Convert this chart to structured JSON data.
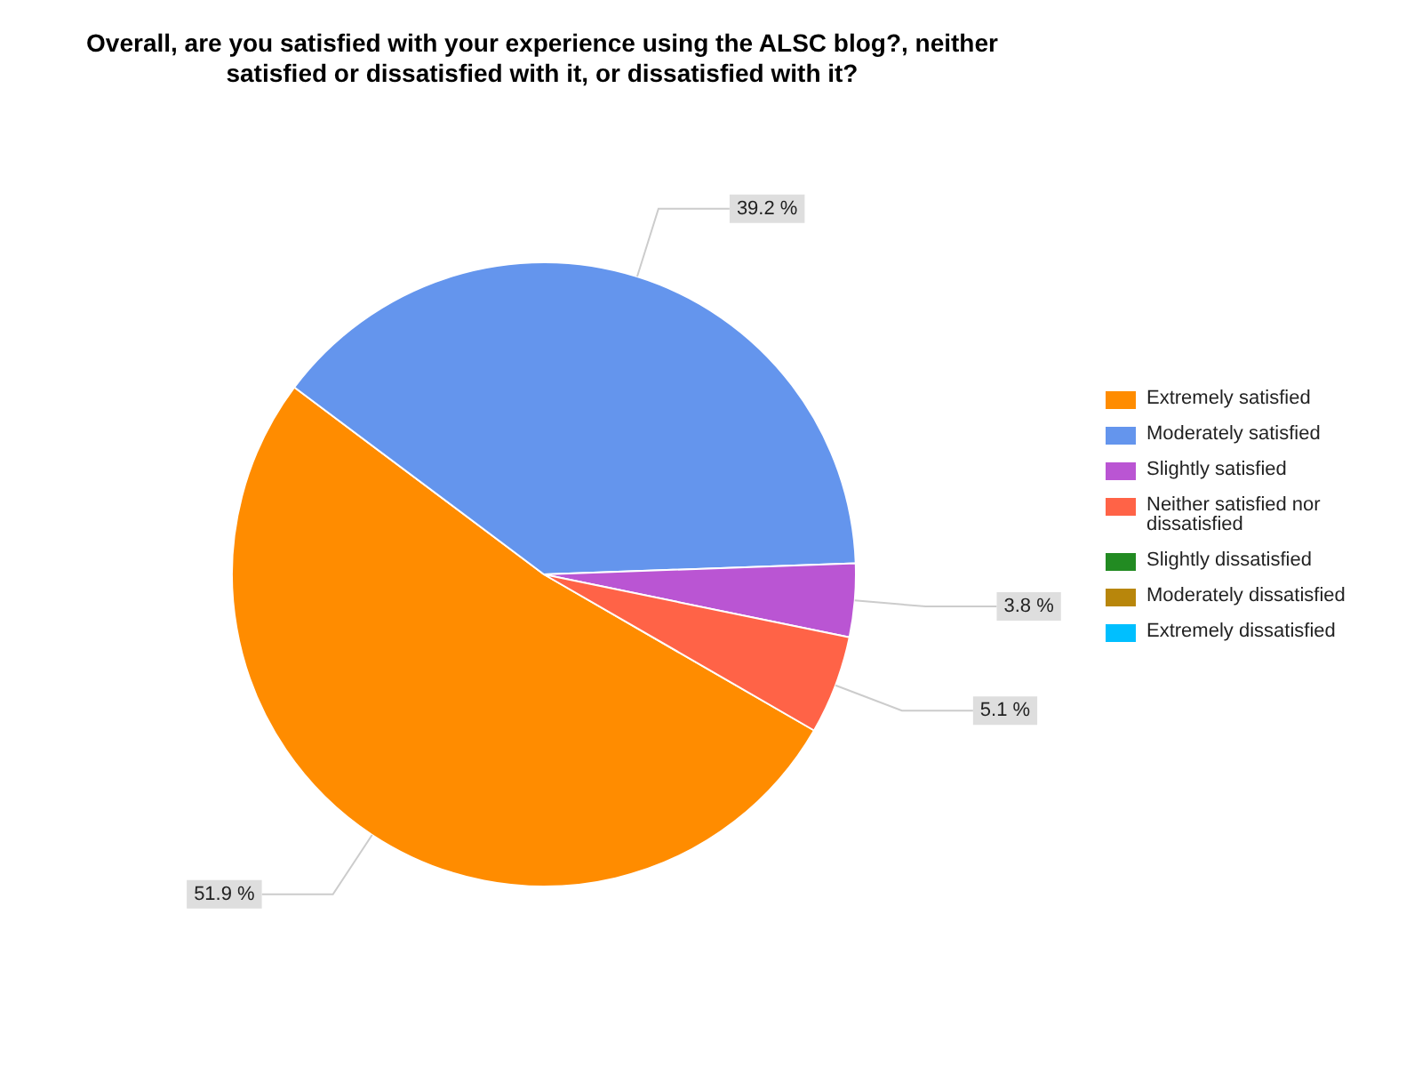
{
  "chart_data": {
    "type": "pie",
    "title": "Overall, are you satisfied with your experience using the ALSC blog?, neither satisfied or dissatisfied with it, or dissatisfied with it?",
    "categories": [
      "Extremely satisfied",
      "Moderately satisfied",
      "Slightly satisfied",
      "Neither satisfied nor dissatisfied",
      "Slightly dissatisfied",
      "Moderately dissatisfied",
      "Extremely dissatisfied"
    ],
    "values": [
      51.9,
      39.2,
      3.8,
      5.1,
      0,
      0,
      0
    ],
    "colors": [
      "#ff8c00",
      "#6495ed",
      "#ba55d3",
      "#ff6347",
      "#228b22",
      "#b8860b",
      "#00bfff"
    ],
    "value_labels": [
      "51.9 %",
      "39.2 %",
      "3.8 %",
      "5.1 %",
      null,
      null,
      null
    ],
    "legend": "right"
  }
}
